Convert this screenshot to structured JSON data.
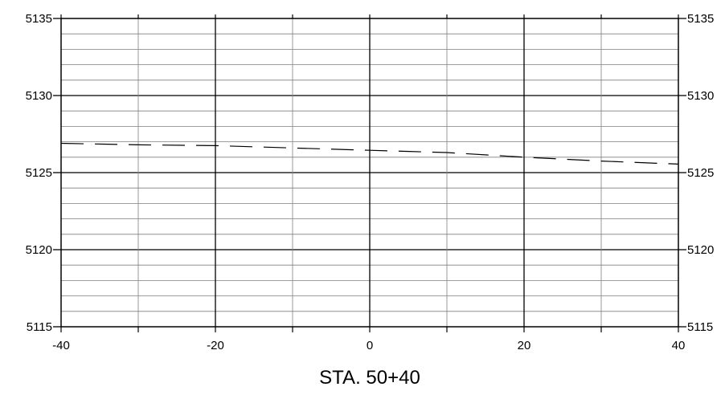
{
  "chart_data": {
    "type": "line",
    "title": "STA. 50+40",
    "xlabel": "",
    "ylabel": "",
    "xlim": [
      -40,
      40
    ],
    "ylim": [
      5115,
      5135
    ],
    "x_ticks": [
      "-40",
      "-20",
      "0",
      "20",
      "40"
    ],
    "y_ticks": [
      "5115",
      "5120",
      "5125",
      "5130",
      "5135"
    ],
    "grid": true,
    "series": [
      {
        "line_style": "dashed",
        "x": [
          -40,
          -30,
          -20,
          -10,
          0,
          10,
          20,
          30,
          40
        ],
        "y": [
          5126.9,
          5126.8,
          5126.75,
          5126.6,
          5126.45,
          5126.3,
          5126.0,
          5125.75,
          5125.55
        ]
      }
    ],
    "colors": {
      "axis": "#000000",
      "major_grid": "#000000",
      "minor_grid": "#7f7f7f",
      "series": "#000000"
    }
  }
}
